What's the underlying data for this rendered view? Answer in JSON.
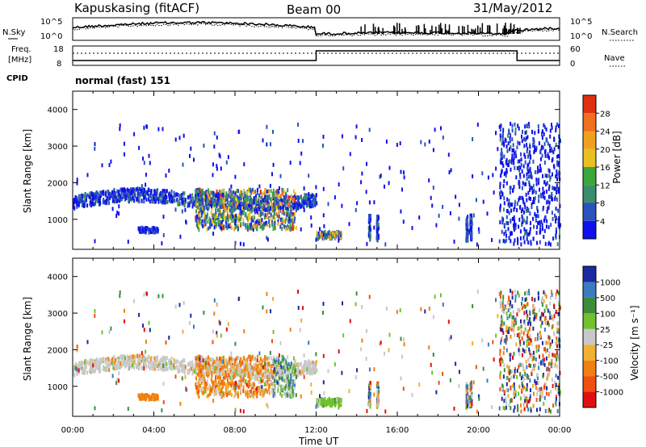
{
  "header": {
    "station": "Kapuskasing (fitACF)",
    "beam": "Beam 00",
    "date": "31/May/2012"
  },
  "noise_panel": {
    "left_label": "N.Sky",
    "right_label": "N.Search",
    "left_ticks": [
      "10^5",
      "10^0"
    ],
    "right_ticks": [
      "10^5",
      "10^0"
    ]
  },
  "freq_panel": {
    "left_label_1": "Freq.",
    "left_label_2": "[MHz]",
    "right_label": "Nave",
    "left_ticks": [
      "18",
      "8"
    ],
    "right_ticks": [
      "60",
      "0"
    ],
    "cpid_label": "CPID",
    "mode_text": "normal (fast) 151"
  },
  "colors": {
    "power_scale": [
      "#1010ee",
      "#2a52be",
      "#3c8c6e",
      "#3ca53c",
      "#e8c020",
      "#f0a020",
      "#f07020",
      "#e03010"
    ],
    "velocity_scale": [
      "#e01010",
      "#f05010",
      "#f08010",
      "#f0b030",
      "#c8c8c8",
      "#70c030",
      "#3c8c3c",
      "#3c7abe",
      "#1a2aa0"
    ],
    "trace": "#000000"
  },
  "chart_data": [
    {
      "type": "heatmap",
      "panel": "power",
      "xlabel": "",
      "ylabel": "Slant Range [km]",
      "ylim": [
        180,
        4500
      ],
      "yticks": [
        "1000",
        "2000",
        "3000",
        "4000"
      ],
      "xticks": [
        "00:00",
        "04:00",
        "08:00",
        "12:00",
        "16:00",
        "20:00",
        "00:00"
      ],
      "colorbar": {
        "label": "Power [dB]",
        "ticks": [
          "4",
          "8",
          "12",
          "16",
          "20",
          "24",
          "28"
        ],
        "range": [
          0,
          30
        ]
      }
    },
    {
      "type": "heatmap",
      "panel": "velocity",
      "xlabel": "Time UT",
      "ylabel": "Slant Range [km]",
      "ylim": [
        180,
        4500
      ],
      "yticks": [
        "1000",
        "2000",
        "3000",
        "4000"
      ],
      "xticks": [
        "00:00",
        "04:00",
        "08:00",
        "12:00",
        "16:00",
        "20:00",
        "00:00"
      ],
      "colorbar": {
        "label": "Velocity [m s⁻¹]",
        "ticks": [
          "-1000",
          "-500",
          "-100",
          "-25",
          "25",
          "100",
          "500",
          "1000"
        ]
      }
    }
  ]
}
